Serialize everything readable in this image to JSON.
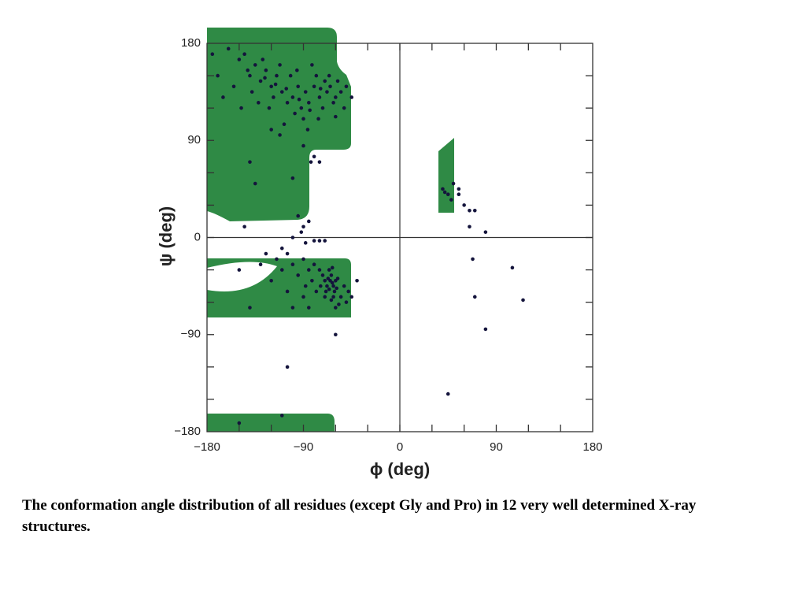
{
  "chart_data": {
    "type": "scatter",
    "xlabel": "ϕ (deg)",
    "ylabel": "ψ (deg)",
    "caption": "The conformation angle distribution of all residues (except Gly and Pro) in 12 very well determined X-ray structures.",
    "xlim": [
      -180,
      180
    ],
    "ylim": [
      -180,
      180
    ],
    "xticks": [
      {
        "value": -180,
        "label": "−180"
      },
      {
        "value": -90,
        "label": "−90"
      },
      0,
      90,
      180
    ],
    "yticks": [
      {
        "value": -180,
        "label": "−180"
      },
      {
        "value": -90,
        "label": "−90"
      },
      0,
      90,
      180
    ],
    "minor_ticks": [
      -150,
      -120,
      -90,
      -60,
      -30,
      0,
      30,
      60,
      90,
      120,
      150
    ],
    "color": "#14143c",
    "x": [
      -140,
      -135,
      -130,
      -125,
      -120,
      -118,
      -115,
      -110,
      -105,
      -100,
      -98,
      -95,
      -92,
      -90,
      -88,
      -85,
      -80,
      -78,
      -75,
      -72,
      -70,
      -68,
      -65,
      -62,
      -60,
      -58,
      -55,
      -50,
      -45,
      -150,
      -155,
      -160,
      -145,
      -138,
      -128,
      -112,
      -102,
      -96,
      -82,
      -76,
      -86,
      -108,
      -122,
      -132,
      -148,
      -165,
      -170,
      -175,
      -142,
      -126,
      -116,
      -106,
      -94,
      -84,
      -74,
      -66,
      -60,
      -52,
      -140,
      -135,
      -100,
      -80,
      -75,
      -145,
      -120,
      -90,
      -112,
      -83,
      -95,
      -90,
      -92,
      -85,
      -100,
      -88,
      -110,
      -105,
      -80,
      -75,
      -70,
      -65,
      -63,
      -67,
      -62,
      -60,
      -68,
      -64,
      -66,
      -61,
      -70,
      -58,
      -72,
      -75,
      -80,
      -85,
      -90,
      -95,
      -100,
      -110,
      -120,
      -105,
      -90,
      -78,
      -55,
      -52,
      -50,
      -48,
      -57,
      -62,
      -66,
      -70,
      -74,
      -82,
      -88,
      -115,
      -125,
      -130,
      -45,
      -40,
      -100,
      -85,
      -60,
      -64,
      -59,
      -69,
      -63,
      40,
      45,
      50,
      55,
      60,
      65,
      65,
      70,
      80,
      48,
      42,
      55,
      68,
      105,
      115,
      70,
      80,
      45,
      -105,
      -110,
      -60,
      -150,
      -140,
      -150
    ],
    "y": [
      150,
      160,
      145,
      155,
      140,
      130,
      150,
      135,
      125,
      130,
      115,
      140,
      120,
      110,
      135,
      125,
      140,
      150,
      130,
      120,
      145,
      135,
      140,
      125,
      130,
      145,
      135,
      140,
      130,
      165,
      140,
      175,
      170,
      135,
      165,
      160,
      150,
      155,
      160,
      110,
      100,
      105,
      120,
      125,
      120,
      130,
      150,
      170,
      155,
      148,
      142,
      138,
      128,
      118,
      138,
      150,
      112,
      120,
      70,
      50,
      55,
      75,
      70,
      10,
      100,
      85,
      95,
      70,
      20,
      10,
      5,
      15,
      0,
      -5,
      -10,
      -15,
      -3,
      -3,
      -3,
      -40,
      -42,
      -38,
      -45,
      -40,
      -45,
      -35,
      -48,
      -50,
      -40,
      -38,
      -35,
      -30,
      -25,
      -30,
      -20,
      -35,
      -25,
      -30,
      -40,
      -50,
      -55,
      -50,
      -55,
      -45,
      -60,
      -50,
      -62,
      -55,
      -30,
      -55,
      -45,
      -40,
      -45,
      -20,
      -15,
      -25,
      -55,
      -40,
      -65,
      -65,
      -65,
      -58,
      -47,
      -50,
      -28,
      45,
      40,
      50,
      40,
      30,
      25,
      10,
      25,
      5,
      35,
      42,
      45,
      -20,
      -28,
      -58,
      -55,
      -85,
      -145,
      -120,
      -165,
      -90,
      -172,
      -65,
      -30
    ]
  }
}
